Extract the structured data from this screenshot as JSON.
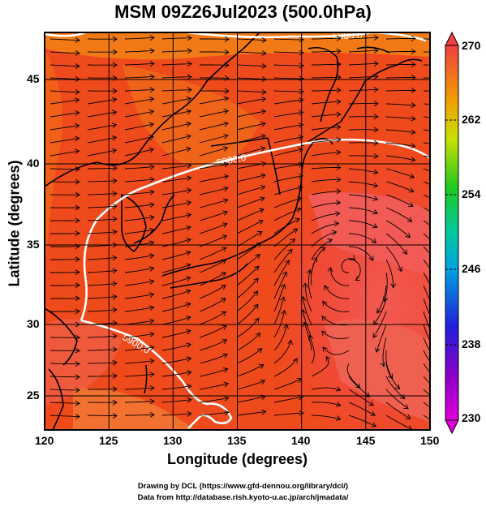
{
  "title": "MSM 09Z26Jul2023 (500.0hPa)",
  "axes": {
    "xlabel": "Longitude (degrees)",
    "ylabel": "Latitude  (degrees)",
    "x_ticks": [
      "120",
      "125",
      "130",
      "135",
      "140",
      "145",
      "150"
    ],
    "y_ticks": [
      "45",
      "40",
      "35",
      "30",
      "25"
    ]
  },
  "colorbar": {
    "ticks": [
      "270",
      "262",
      "254",
      "246",
      "238",
      "230"
    ]
  },
  "contours": {
    "labels": [
      "5800.0",
      "5800.0",
      "5900.0"
    ]
  },
  "credits": {
    "line1": "Drawing by DCL (https://www.gfd-dennou.org/library/dcl/)",
    "line2": "Data from http://database.rish.kyoto-u.ac.jp/arch/jmadata/"
  },
  "chart_data": {
    "type": "heatmap",
    "title": "MSM 09Z26Jul2023 (500.0hPa)",
    "xlabel": "Longitude (degrees)",
    "ylabel": "Latitude  (degrees)",
    "xlim": [
      120,
      150
    ],
    "ylim": [
      22.4,
      47.6
    ],
    "x_ticks": [
      120,
      125,
      130,
      135,
      140,
      145,
      150
    ],
    "y_ticks": [
      25,
      30,
      35,
      40,
      45
    ],
    "colorbar_range": [
      230,
      270
    ],
    "colorbar_ticks": [
      230,
      238,
      246,
      254,
      262,
      270
    ],
    "contour_levels": [
      5800,
      5900
    ],
    "grid": true,
    "colors": {
      "field_high": "#f0524f",
      "field_mid": "#ef3c1e",
      "field_low": "#f07a12",
      "contour": "#ffffff",
      "streamline": "#000000"
    }
  }
}
